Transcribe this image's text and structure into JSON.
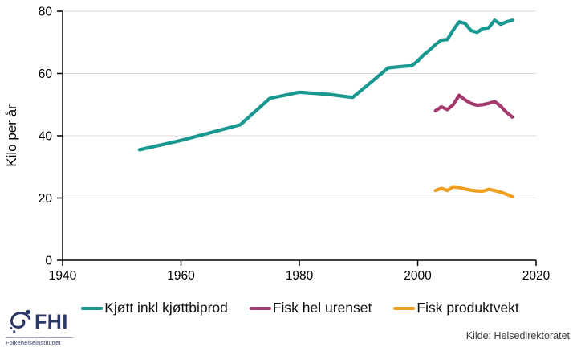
{
  "chart_data": {
    "type": "line",
    "title": "",
    "xlabel": "",
    "ylabel": "Kilo per år",
    "xlim": [
      1940,
      2020
    ],
    "ylim": [
      0,
      80
    ],
    "x_ticks": [
      1940,
      1960,
      1980,
      2000,
      2020
    ],
    "y_ticks": [
      0,
      20,
      40,
      60,
      80
    ],
    "grid": "horizontal",
    "gridline_color": "#DADADA",
    "axis_color": "#000000",
    "legend_position": "bottom",
    "series": [
      {
        "name": "Kjøtt inkl kjøttbiprod",
        "color": "#189890",
        "points": [
          [
            1953,
            35.5
          ],
          [
            1960,
            38.5
          ],
          [
            1970,
            43.5
          ],
          [
            1975,
            52
          ],
          [
            1980,
            54
          ],
          [
            1985,
            53.3
          ],
          [
            1989,
            52.3
          ],
          [
            1992,
            57
          ],
          [
            1995,
            61.8
          ],
          [
            1997,
            62.2
          ],
          [
            1999,
            62.5
          ],
          [
            2000,
            64
          ],
          [
            2001,
            66
          ],
          [
            2002,
            67.5
          ],
          [
            2003,
            69.3
          ],
          [
            2004,
            70.7
          ],
          [
            2005,
            70.9
          ],
          [
            2006,
            74
          ],
          [
            2007,
            76.6
          ],
          [
            2008,
            76.1
          ],
          [
            2009,
            73.8
          ],
          [
            2010,
            73.2
          ],
          [
            2011,
            74.4
          ],
          [
            2012,
            74.7
          ],
          [
            2013,
            77.1
          ],
          [
            2014,
            75.8
          ],
          [
            2015,
            76.6
          ],
          [
            2016,
            77.1
          ]
        ]
      },
      {
        "name": "Fisk hel urenset",
        "color": "#A53A6E",
        "points": [
          [
            2003,
            48
          ],
          [
            2004,
            49.3
          ],
          [
            2005,
            48.4
          ],
          [
            2006,
            50
          ],
          [
            2007,
            53
          ],
          [
            2008,
            51.5
          ],
          [
            2009,
            50.4
          ],
          [
            2010,
            49.8
          ],
          [
            2011,
            50
          ],
          [
            2012,
            50.4
          ],
          [
            2013,
            51
          ],
          [
            2014,
            49.5
          ],
          [
            2015,
            47.5
          ],
          [
            2016,
            46
          ]
        ]
      },
      {
        "name": "Fisk produktvekt",
        "color": "#EFA022",
        "points": [
          [
            2003,
            22.4
          ],
          [
            2004,
            23.1
          ],
          [
            2005,
            22.4
          ],
          [
            2006,
            23.6
          ],
          [
            2007,
            23.3
          ],
          [
            2008,
            22.9
          ],
          [
            2009,
            22.5
          ],
          [
            2010,
            22.3
          ],
          [
            2011,
            22.2
          ],
          [
            2012,
            22.8
          ],
          [
            2013,
            22.4
          ],
          [
            2014,
            21.9
          ],
          [
            2015,
            21.2
          ],
          [
            2016,
            20.4
          ]
        ]
      }
    ]
  },
  "footer": {
    "source": "Kilde: Helsedirektoratet",
    "logo": {
      "abbr": "FHI",
      "name": "Folkehelseinstituttet",
      "color": "#2C3968"
    }
  }
}
